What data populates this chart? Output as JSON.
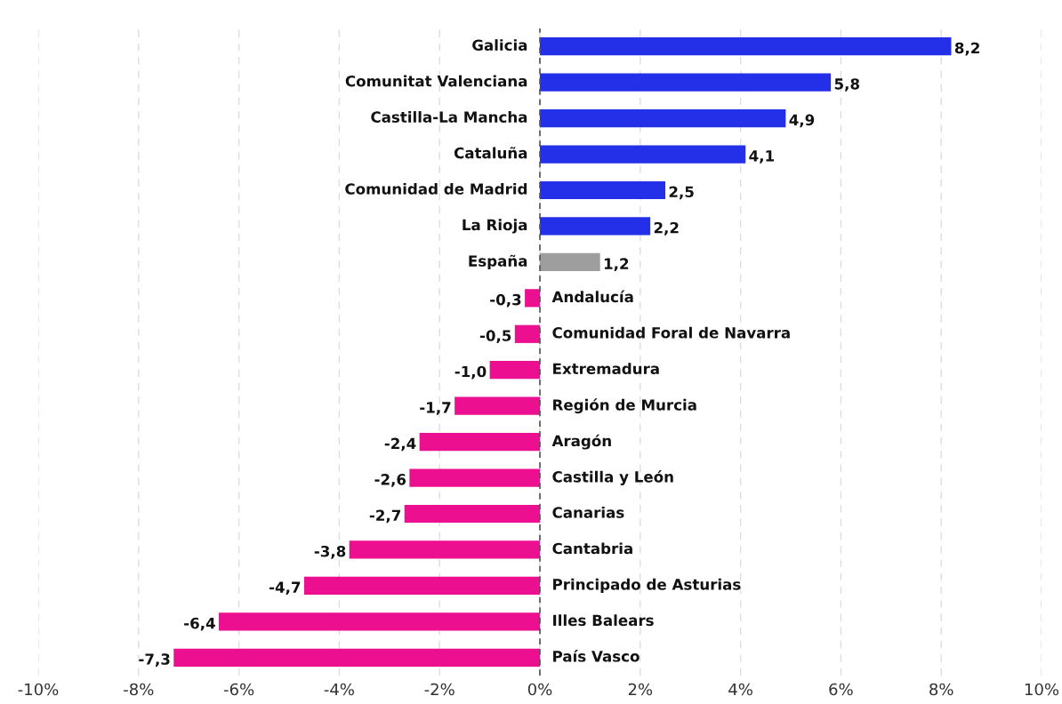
{
  "chart_data": {
    "type": "bar",
    "orientation": "horizontal",
    "categories": [
      "Galicia",
      "Comunitat Valenciana",
      "Castilla-La Mancha",
      "Cataluña",
      "Comunidad de Madrid",
      "La Rioja",
      "España",
      "Andalucía",
      "Comunidad Foral de Navarra",
      "Extremadura",
      "Región de Murcia",
      "Aragón",
      "Castilla y León",
      "Canarias",
      "Cantabria",
      "Principado de Asturias",
      "Illes Balears",
      "País Vasco"
    ],
    "values": [
      8.2,
      5.8,
      4.9,
      4.1,
      2.5,
      2.2,
      1.2,
      -0.3,
      -0.5,
      -1.0,
      -1.7,
      -2.4,
      -2.6,
      -2.7,
      -3.8,
      -4.7,
      -6.4,
      -7.3
    ],
    "value_labels": [
      "8,2",
      "5,8",
      "4,9",
      "4,1",
      "2,5",
      "2,2",
      "1,2",
      "-0,3",
      "-0,5",
      "-1,0",
      "-1,7",
      "-2,4",
      "-2,6",
      "-2,7",
      "-3,8",
      "-4,7",
      "-6,4",
      "-7,3"
    ],
    "colors": [
      "#2330e8",
      "#2330e8",
      "#2330e8",
      "#2330e8",
      "#2330e8",
      "#2330e8",
      "#9e9e9e",
      "#ec1091",
      "#ec1091",
      "#ec1091",
      "#ec1091",
      "#ec1091",
      "#ec1091",
      "#ec1091",
      "#ec1091",
      "#ec1091",
      "#ec1091",
      "#ec1091"
    ],
    "xlim": [
      -10,
      10
    ],
    "xticks": [
      {
        "value": -10,
        "label": "-10%"
      },
      {
        "value": -8,
        "label": "-8%"
      },
      {
        "value": -6,
        "label": "-6%"
      },
      {
        "value": -4,
        "label": "-4%"
      },
      {
        "value": -2,
        "label": "-2%"
      },
      {
        "value": 0,
        "label": "0%"
      },
      {
        "value": 2,
        "label": "2%"
      },
      {
        "value": 4,
        "label": "4%"
      },
      {
        "value": 6,
        "label": "6%"
      },
      {
        "value": 8,
        "label": "8%"
      },
      {
        "value": 10,
        "label": "10%"
      }
    ],
    "grid": "x",
    "ref_lines": [
      {
        "axis": "x",
        "value": 0,
        "color": "#555555",
        "line_style": "dashed"
      }
    ]
  }
}
